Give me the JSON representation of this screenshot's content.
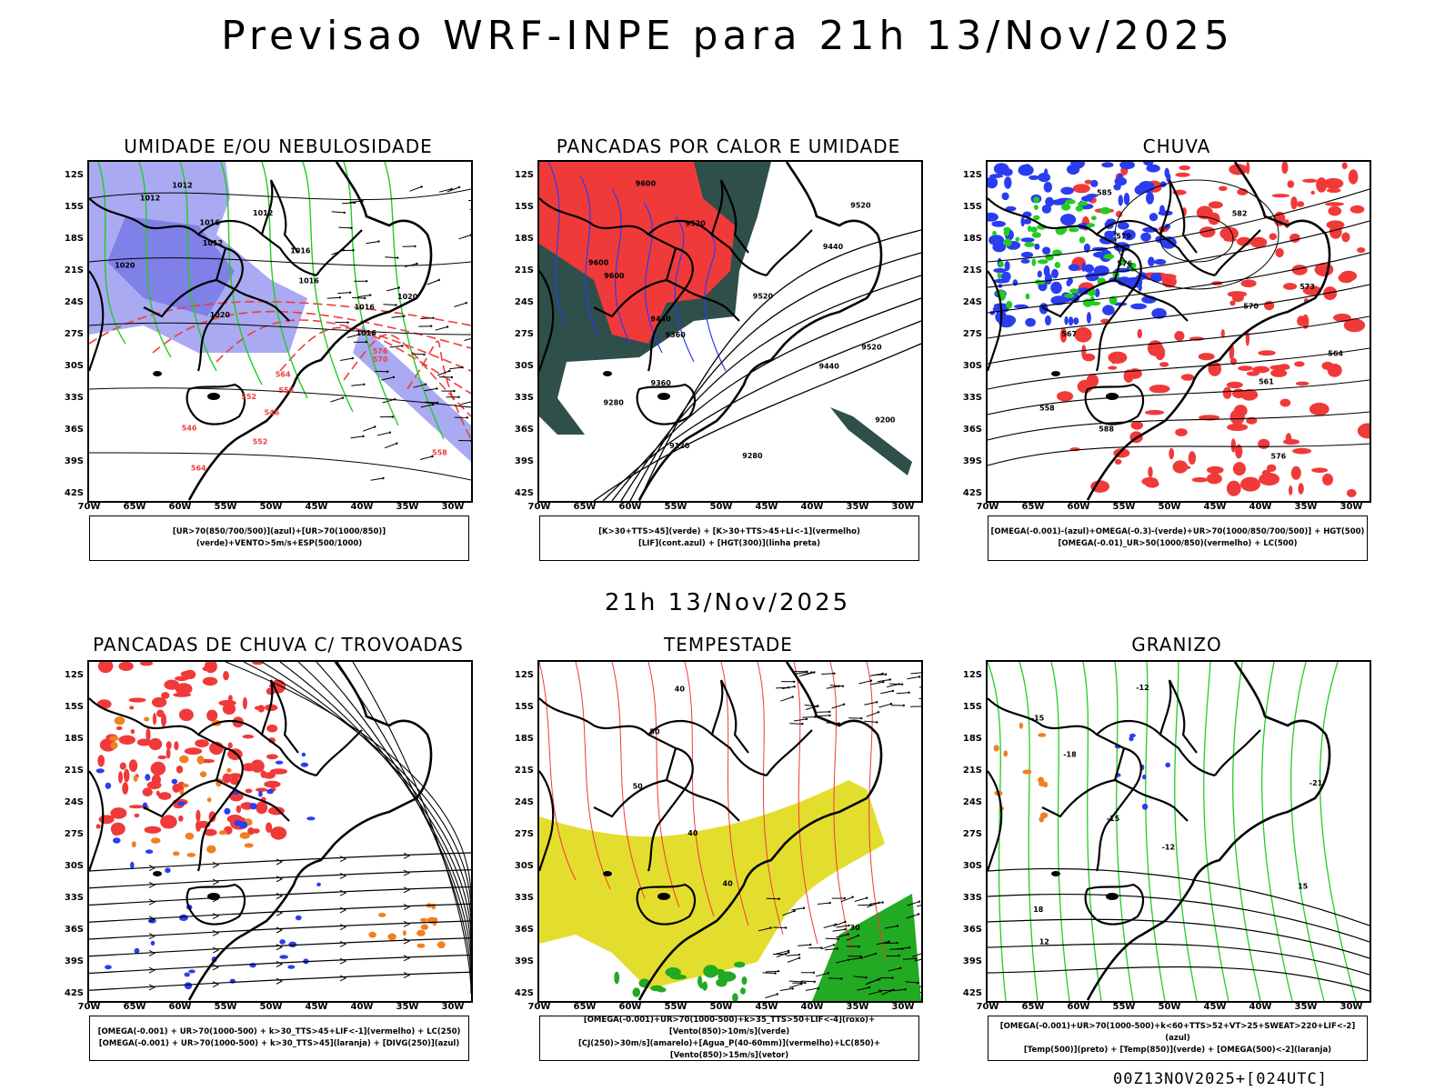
{
  "header": {
    "title": "Previsao WRF-INPE  para 21h 13/Nov/2025",
    "mid_title": "21h 13/Nov/2025",
    "footer": "00Z13NOV2025+[024UTC]"
  },
  "axes": {
    "lat_labels": [
      "12S",
      "15S",
      "18S",
      "21S",
      "24S",
      "27S",
      "30S",
      "33S",
      "36S",
      "39S",
      "42S"
    ],
    "lon_labels": [
      "70W",
      "65W",
      "60W",
      "55W",
      "50W",
      "45W",
      "40W",
      "35W",
      "30W"
    ]
  },
  "panels": [
    {
      "title": "UMIDADE E/OU NEBULOSIDADE",
      "legend": [
        "[UR>70(850/700/500)](azul)+[UR>70(1000/850)](verde)+VENTO>5m/s+ESP(500/1000)"
      ],
      "contour_labels": [
        "1012",
        "1012",
        "1012",
        "1016",
        "1012",
        "1016",
        "1020",
        "1016",
        "1020",
        "1016",
        "1020",
        "1016",
        "576",
        "570",
        "564",
        "558",
        "552",
        "546",
        "546",
        "552",
        "558",
        "564"
      ]
    },
    {
      "title": "PANCADAS POR CALOR E UMIDADE",
      "legend": [
        "[K>30+TTS>45](verde) + [K>30+TTS>45+LI<-1](vermelho)",
        "[LIF](cont.azul) + [HGT(300)](linha preta)"
      ],
      "contour_labels": [
        "9600",
        "9520",
        "9520",
        "9440",
        "9600",
        "9600",
        "9520",
        "9440",
        "9360",
        "9520",
        "9440",
        "9360",
        "9280",
        "9200",
        "9120",
        "9280"
      ]
    },
    {
      "title": "CHUVA",
      "legend": [
        "[OMEGA(-0.001)-(azul)+OMEGA(-0.3)-(verde)+UR>70(1000/850/700/500)] + HGT(500)",
        "[OMEGA(-0.01)_UR>50(1000/850)(vermelho) + LC(500)"
      ],
      "contour_labels": [
        "585",
        "582",
        "579",
        "576",
        "573",
        "570",
        "567",
        "564",
        "561",
        "558",
        "588",
        "576"
      ]
    },
    {
      "title": "PANCADAS DE CHUVA C/ TROVOADAS",
      "legend": [
        "[OMEGA(-0.001) + UR>70(1000-500) + k>30_TTS>45+LIF<-1](vermelho) + LC(250)",
        "[OMEGA(-0.001) + UR>70(1000-500) + k>30_TTS>45](laranja) + [DIVG(250)](azul)"
      ],
      "contour_labels": []
    },
    {
      "title": "TEMPESTADE",
      "legend": [
        "[OMEGA(-0.001)+UR>70(1000-500)+k>35_TTS>50+LIF<-4](roxo)+[Vento(850)>10m/s](verde)",
        "[CJ(250)>30m/s](amarelo)+[Agua_P(40-60mm)](vermelho)+LC(850)+[Vento(850)>15m/s](vetor)"
      ],
      "contour_labels": [
        "40",
        "50",
        "50",
        "40",
        "40",
        "30"
      ]
    },
    {
      "title": "GRANIZO",
      "legend": [
        "[OMEGA(-0.001)+UR>70(1000-500)+k<60+TTS>52+VT>25+SWEAT>220+LIF<-2](azul)",
        "[Temp(500)](preto) + [Temp(850)](verde) + [OMEGA(500)<-2](laranja)"
      ],
      "contour_labels": [
        "-12",
        "-15",
        "-18",
        "-21",
        "-15",
        "-12",
        "15",
        "18",
        "12"
      ]
    }
  ],
  "colors": {
    "blue": "#2a3df0",
    "lightblue": "#a9aaf2",
    "green": "#22cc22",
    "red": "#f03a3a",
    "darkteal": "#2e4f4a",
    "yellow": "#e3de2e",
    "orange": "#f08020"
  }
}
